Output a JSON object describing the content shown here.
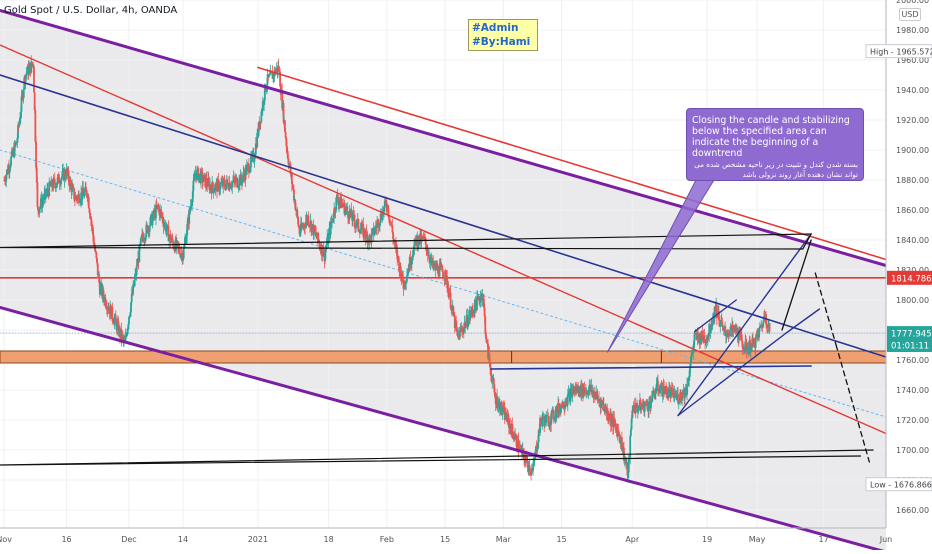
{
  "chart_data": {
    "type": "candlestick",
    "title": "Gold Spot / U.S. Dollar, 4h, OANDA",
    "currency_label": "USD",
    "y_range": [
      1648,
      2000
    ],
    "y_ticks": [
      1660,
      1680,
      1700,
      1720,
      1740,
      1760,
      1780,
      1800,
      1820,
      1840,
      1860,
      1880,
      1900,
      1920,
      1940,
      1960,
      1980,
      2000
    ],
    "x_range": [
      "2020-10-31",
      "2021-06-01"
    ],
    "x_ticks": [
      {
        "label": "Nov",
        "date": "2020-11-01"
      },
      {
        "label": "16",
        "date": "2020-11-16"
      },
      {
        "label": "Dec",
        "date": "2020-12-01"
      },
      {
        "label": "14",
        "date": "2020-12-14"
      },
      {
        "label": "2021",
        "date": "2021-01-01"
      },
      {
        "label": "18",
        "date": "2021-01-18"
      },
      {
        "label": "Feb",
        "date": "2021-02-01"
      },
      {
        "label": "15",
        "date": "2021-02-15"
      },
      {
        "label": "Mar",
        "date": "2021-03-01"
      },
      {
        "label": "15",
        "date": "2021-03-15"
      },
      {
        "label": "Apr",
        "date": "2021-04-01"
      },
      {
        "label": "19",
        "date": "2021-04-19"
      },
      {
        "label": "May",
        "date": "2021-05-01"
      },
      {
        "label": "17",
        "date": "2021-05-17"
      },
      {
        "label": "Jun",
        "date": "2021-06-01"
      }
    ],
    "close_path": [
      [
        "2020-11-01",
        1880
      ],
      [
        "2020-11-04",
        1905
      ],
      [
        "2020-11-06",
        1950
      ],
      [
        "2020-11-08",
        1958
      ],
      [
        "2020-11-09",
        1860
      ],
      [
        "2020-11-12",
        1875
      ],
      [
        "2020-11-16",
        1885
      ],
      [
        "2020-11-18",
        1868
      ],
      [
        "2020-11-21",
        1872
      ],
      [
        "2020-11-24",
        1808
      ],
      [
        "2020-11-27",
        1790
      ],
      [
        "2020-11-30",
        1770
      ],
      [
        "2020-12-01",
        1790
      ],
      [
        "2020-12-04",
        1840
      ],
      [
        "2020-12-08",
        1862
      ],
      [
        "2020-12-11",
        1840
      ],
      [
        "2020-12-14",
        1830
      ],
      [
        "2020-12-17",
        1885
      ],
      [
        "2020-12-21",
        1875
      ],
      [
        "2020-12-24",
        1877
      ],
      [
        "2020-12-28",
        1880
      ],
      [
        "2020-12-31",
        1895
      ],
      [
        "2021-01-03",
        1945
      ],
      [
        "2021-01-06",
        1955
      ],
      [
        "2021-01-08",
        1900
      ],
      [
        "2021-01-11",
        1845
      ],
      [
        "2021-01-13",
        1855
      ],
      [
        "2021-01-17",
        1830
      ],
      [
        "2021-01-20",
        1868
      ],
      [
        "2021-01-25",
        1850
      ],
      [
        "2021-01-28",
        1840
      ],
      [
        "2021-02-01",
        1865
      ],
      [
        "2021-02-03",
        1835
      ],
      [
        "2021-02-05",
        1810
      ],
      [
        "2021-02-08",
        1840
      ],
      [
        "2021-02-10",
        1840
      ],
      [
        "2021-02-12",
        1822
      ],
      [
        "2021-02-15",
        1818
      ],
      [
        "2021-02-18",
        1775
      ],
      [
        "2021-02-21",
        1790
      ],
      [
        "2021-02-24",
        1805
      ],
      [
        "2021-02-25",
        1770
      ],
      [
        "2021-02-27",
        1735
      ],
      [
        "2021-03-02",
        1720
      ],
      [
        "2021-03-05",
        1700
      ],
      [
        "2021-03-08",
        1685
      ],
      [
        "2021-03-10",
        1720
      ],
      [
        "2021-03-12",
        1720
      ],
      [
        "2021-03-15",
        1730
      ],
      [
        "2021-03-18",
        1740
      ],
      [
        "2021-03-22",
        1740
      ],
      [
        "2021-03-25",
        1730
      ],
      [
        "2021-03-29",
        1710
      ],
      [
        "2021-03-31",
        1683
      ],
      [
        "2021-04-01",
        1728
      ],
      [
        "2021-04-05",
        1730
      ],
      [
        "2021-04-07",
        1742
      ],
      [
        "2021-04-12",
        1735
      ],
      [
        "2021-04-14",
        1740
      ],
      [
        "2021-04-16",
        1775
      ],
      [
        "2021-04-19",
        1775
      ],
      [
        "2021-04-21",
        1795
      ],
      [
        "2021-04-23",
        1778
      ],
      [
        "2021-04-26",
        1780
      ],
      [
        "2021-04-28",
        1768
      ],
      [
        "2021-04-30",
        1770
      ],
      [
        "2021-05-01",
        1775
      ],
      [
        "2021-05-03",
        1790
      ],
      [
        "2021-05-04",
        1780
      ]
    ],
    "price_labels": [
      {
        "kind": "high",
        "text": "High - 1965.572",
        "value": 1965.572
      },
      {
        "kind": "resistance",
        "text": "1814.786",
        "value": 1814.786,
        "color": "#e53935"
      },
      {
        "kind": "last",
        "text": "1777.945",
        "value": 1777.945,
        "color": "#26a69a"
      },
      {
        "kind": "countdown",
        "text": "01:01:11",
        "value": 1770,
        "color": "#26a69a"
      },
      {
        "kind": "low",
        "text": "Low - 1676.866",
        "value": 1676.866
      }
    ],
    "annotations": {
      "note": [
        "#Admin",
        "#By:Hami"
      ],
      "callout_en": "Closing the candle and stabilizing below the specified area can indicate the beginning of a downtrend",
      "callout_fa": "بسته شدن کندل و تثبیت در زیر ناحیه مشخص شده می تواند نشان دهنده آغاز روند نزولی باشد"
    },
    "colors": {
      "up": "#26a69a",
      "down": "#ef5350",
      "channel_outer": "#7b1fa2",
      "channel_red": "#e53935",
      "trend_blue": "#283593",
      "support_zone": "#f0a070",
      "dotted": "#64b5f6"
    },
    "grid": true,
    "legend": "none"
  }
}
